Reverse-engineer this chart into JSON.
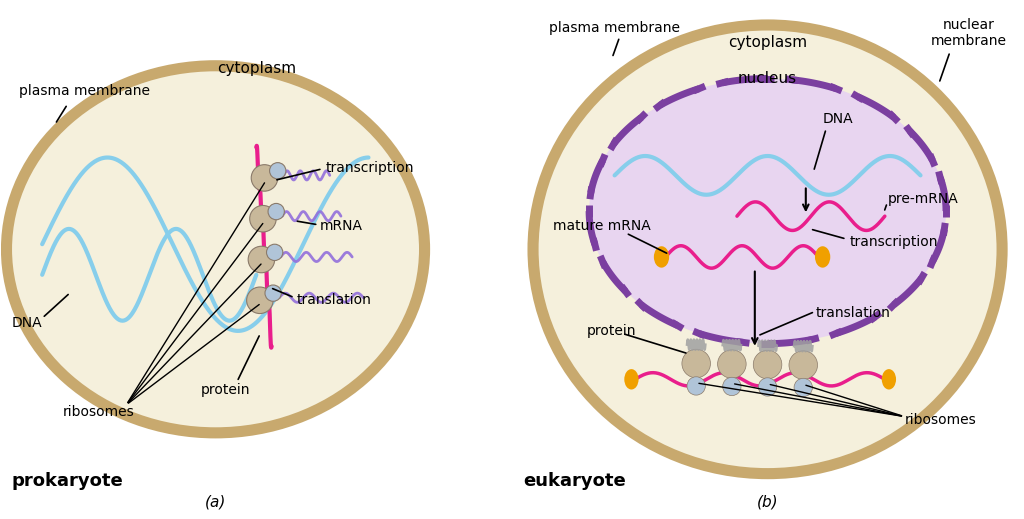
{
  "bg_color": "#ffffff",
  "cell_fill_color": "#f5f0dc",
  "cell_edge_color": "#c8a96e",
  "cell_edge_width": 8,
  "cytoplasm_label_a": "cytoplasm",
  "transcription_label": "transcription",
  "mrna_label": "mRNA",
  "translation_label": "translation",
  "protein_label": "protein",
  "dna_label": "DNA",
  "ribosomes_label": "ribosomes",
  "plasma_membrane_label": "plasma membrane",
  "prokaryote_label": "prokaryote",
  "eukaryote_label": "eukaryote",
  "panel_a_label": "(a)",
  "panel_b_label": "(b)",
  "nucleus_fill_color": "#e8d5f0",
  "nucleus_edge_color": "#7b3fa0",
  "nucleus_label": "nucleus",
  "cytoplasm_label_b": "cytoplasm",
  "plasma_membrane_label_b": "plasma membrane",
  "nuclear_membrane_label": "nuclear\nmembrane",
  "dna_label_b": "DNA",
  "pre_mrna_label": "pre-mRNA",
  "mature_mrna_label": "mature mRNA",
  "transcription_label_b": "transcription",
  "translation_label_b": "translation",
  "protein_label_b": "protein",
  "ribosomes_label_b": "ribosomes",
  "hot_pink": "#e91e8c",
  "light_blue": "#87ceeb",
  "purple_mrna": "#9370db",
  "orange_cap": "#f0a000",
  "ribosome_color": "#b0c4d8",
  "ribosome_tan": "#c8b89a",
  "ribosome_edge": "#8a7a6a"
}
